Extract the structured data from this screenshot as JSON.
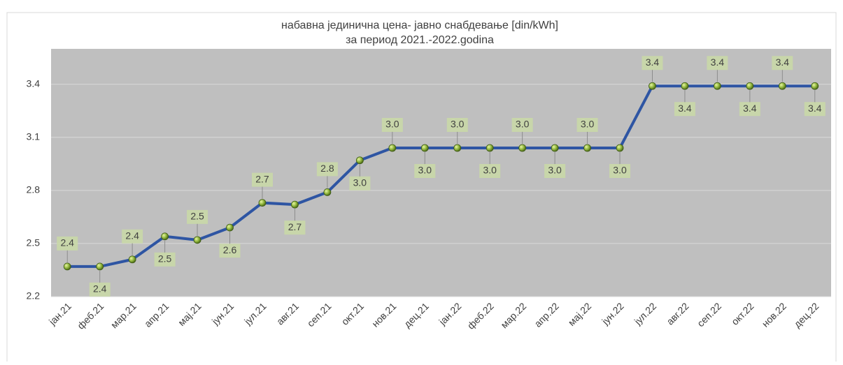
{
  "chart_data": {
    "type": "line",
    "title": "набавна јединична цена- јавно снабдевање [din/kWh]",
    "subtitle": "за период 2021.-2022.godina",
    "categories": [
      "јан.21",
      "феб.21",
      "мар.21",
      "апр.21",
      "мај.21",
      "јун.21",
      "јул.21",
      "авг.21",
      "сеп.21",
      "окт.21",
      "нов.21",
      "дец.21",
      "јан.22",
      "феб.22",
      "мар.22",
      "апр.22",
      "мај.22",
      "јун.22",
      "јул.22",
      "авг.22",
      "сеп.22",
      "окт.22",
      "нов.22",
      "дец.22"
    ],
    "series": [
      {
        "name": "набавна јединична цена",
        "color": "#2e55a3",
        "values": [
          2.37,
          2.37,
          2.41,
          2.54,
          2.52,
          2.59,
          2.73,
          2.72,
          2.79,
          2.97,
          3.04,
          3.04,
          3.04,
          3.04,
          3.04,
          3.04,
          3.04,
          3.04,
          3.39,
          3.39,
          3.39,
          3.39,
          3.39,
          3.39
        ],
        "value_labels": [
          "2.4",
          "2.4",
          "2.4",
          "2.5",
          "2.5",
          "2.6",
          "2.7",
          "2.7",
          "2.8",
          "3.0",
          "3.0",
          "3.0",
          "3.0",
          "3.0",
          "3.0",
          "3.0",
          "3.0",
          "3.0",
          "3.4",
          "3.4",
          "3.4",
          "3.4",
          "3.4",
          "3.4"
        ]
      }
    ],
    "ylim": [
      2.2,
      3.6
    ],
    "yticks": [
      2.2,
      2.5,
      2.8,
      3.1,
      3.4
    ],
    "grid": true
  }
}
